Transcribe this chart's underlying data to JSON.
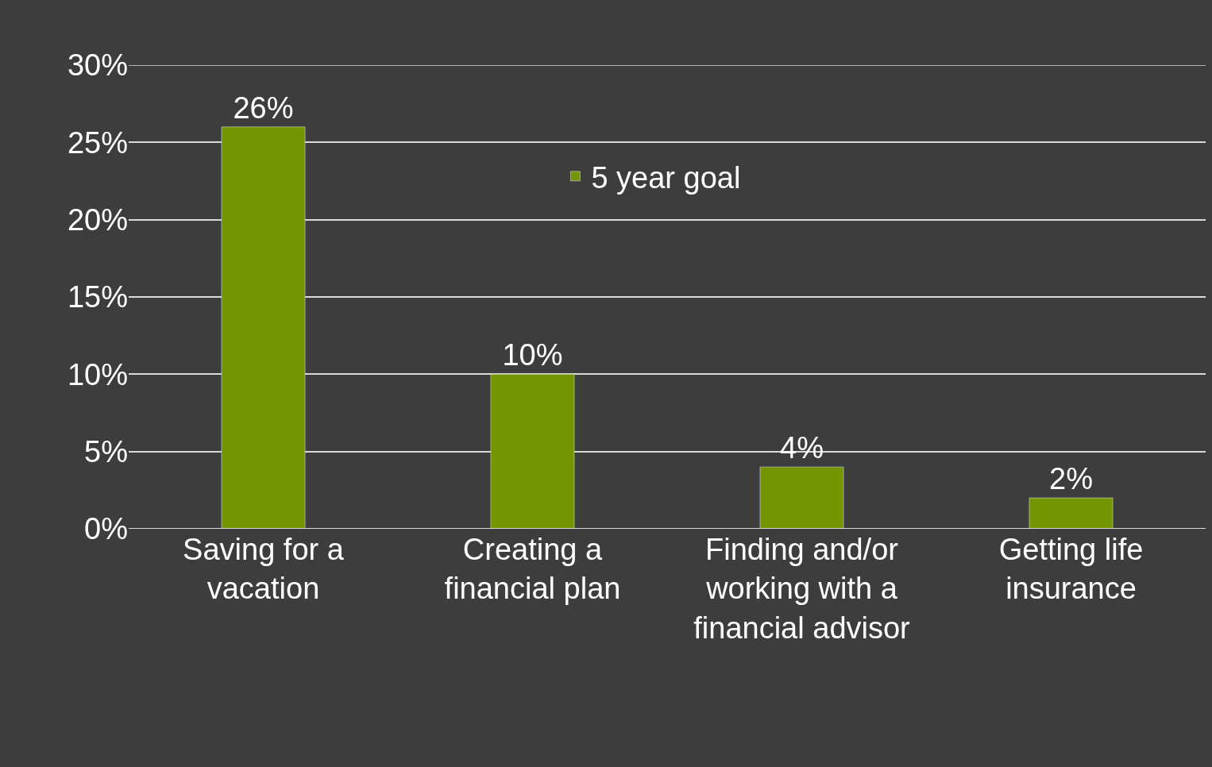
{
  "chart_data": {
    "type": "bar",
    "categories": [
      "Saving for a vacation",
      "Creating a financial plan",
      "Finding and/or working with a financial advisor",
      "Getting life insurance"
    ],
    "series": [
      {
        "name": "5 year goal",
        "color": "#739600",
        "values": [
          26,
          10,
          4,
          2
        ]
      }
    ],
    "value_labels": [
      "26%",
      "10%",
      "4%",
      "2%"
    ],
    "ylim": [
      0,
      30
    ],
    "yticks": [
      {
        "value": 0,
        "label": "0%"
      },
      {
        "value": 5,
        "label": "5%"
      },
      {
        "value": 10,
        "label": "10%"
      },
      {
        "value": 15,
        "label": "15%"
      },
      {
        "value": 20,
        "label": "20%"
      },
      {
        "value": 25,
        "label": "25%"
      },
      {
        "value": 30,
        "label": "30%"
      }
    ],
    "grid": "y",
    "legend": "top"
  }
}
